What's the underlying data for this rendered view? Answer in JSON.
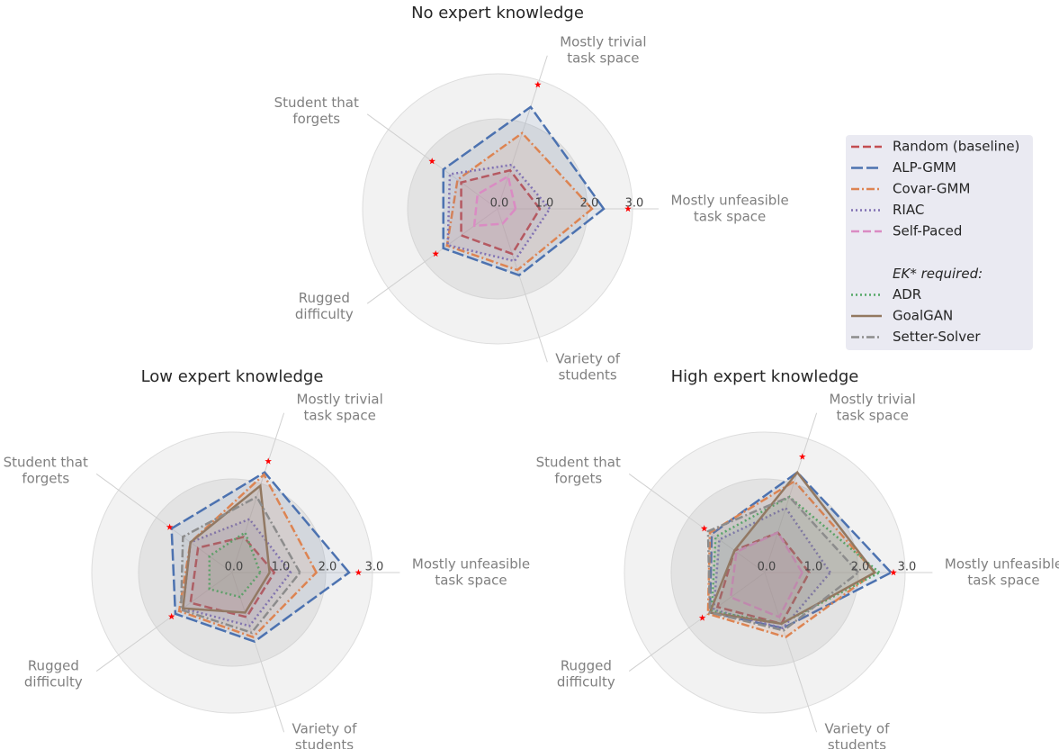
{
  "chart_data": [
    {
      "type": "radar",
      "title": "No expert knowledge",
      "axes": [
        [
          "Mostly unfeasible",
          "task space"
        ],
        [
          "Mostly trivial",
          "task space"
        ],
        [
          "Student that",
          "forgets"
        ],
        [
          "Rugged",
          "difficulty"
        ],
        [
          "Variety of",
          "students"
        ]
      ],
      "rlim": [
        0,
        3
      ],
      "rticks": [
        {
          "value": 0,
          "label": "0.0"
        },
        {
          "value": 1,
          "label": "1.0"
        },
        {
          "value": 2,
          "label": "2.0"
        },
        {
          "value": 3,
          "label": "3.0"
        }
      ],
      "series": [
        {
          "name": "Random (baseline)",
          "color": "#c44e52",
          "dash": "dashed",
          "values": [
            0.94,
            0.9,
            1.0,
            1.0,
            1.05
          ]
        },
        {
          "name": "ALP-GMM",
          "color": "#4c72b0",
          "dash": "longdash",
          "values": [
            2.36,
            2.38,
            1.49,
            1.49,
            1.55
          ]
        },
        {
          "name": "Covar-GMM",
          "color": "#dd8452",
          "dash": "dashdot",
          "values": [
            2.1,
            1.77,
            1.1,
            1.39,
            1.43
          ]
        },
        {
          "name": "RIAC",
          "color": "#8172b3",
          "dash": "dotted",
          "values": [
            1.16,
            1.03,
            1.31,
            1.37,
            1.22
          ]
        },
        {
          "name": "Self-Paced",
          "color": "#da8bc3",
          "dash": "dashed",
          "values": [
            0.4,
            0.76,
            0.55,
            0.64,
            0.35
          ]
        }
      ],
      "markers": {
        "color": "#ff0000",
        "values": [
          2.9,
          2.9,
          1.8,
          1.7,
          null
        ]
      }
    },
    {
      "type": "radar",
      "title": "Low expert knowledge",
      "axes": [
        [
          "Mostly unfeasible",
          "task space"
        ],
        [
          "Mostly trivial",
          "task space"
        ],
        [
          "Student that",
          "forgets"
        ],
        [
          "Rugged",
          "difficulty"
        ],
        [
          "Variety of",
          "students"
        ]
      ],
      "rlim": [
        0,
        3
      ],
      "rticks": [
        {
          "value": 0,
          "label": "0.0"
        },
        {
          "value": 1,
          "label": "1.0"
        },
        {
          "value": 2,
          "label": "2.0"
        },
        {
          "value": 3,
          "label": "3.0"
        }
      ],
      "series": [
        {
          "name": "Random (baseline)",
          "color": "#c44e52",
          "dash": "dashed",
          "values": [
            0.9,
            0.8,
            0.9,
            1.1,
            1.0
          ]
        },
        {
          "name": "ALP-GMM",
          "color": "#4c72b0",
          "dash": "longdash",
          "values": [
            2.5,
            2.25,
            1.6,
            1.5,
            1.55
          ]
        },
        {
          "name": "Covar-GMM",
          "color": "#dd8452",
          "dash": "dashdot",
          "values": [
            1.8,
            2.2,
            1.1,
            1.4,
            1.45
          ]
        },
        {
          "name": "RIAC",
          "color": "#8172b3",
          "dash": "dotted",
          "values": [
            1.25,
            1.2,
            1.1,
            1.3,
            1.2
          ]
        },
        {
          "name": "ADR",
          "color": "#55a868",
          "dash": "dotted",
          "values": [
            0.6,
            0.9,
            0.6,
            0.6,
            0.55
          ]
        },
        {
          "name": "GoalGAN",
          "color": "#937860",
          "dash": "solid",
          "values": [
            0.8,
            1.95,
            1.1,
            1.3,
            0.9
          ]
        },
        {
          "name": "Setter-Solver",
          "color": "#8c8c8c",
          "dash": "dashdot",
          "values": [
            1.45,
            1.7,
            1.3,
            1.35,
            1.35
          ]
        }
      ],
      "markers": {
        "color": "#ff0000",
        "values": [
          2.7,
          2.5,
          1.65,
          1.6,
          null
        ]
      }
    },
    {
      "type": "radar",
      "title": "High expert knowledge",
      "axes": [
        [
          "Mostly unfeasible",
          "task space"
        ],
        [
          "Mostly trivial",
          "task space"
        ],
        [
          "Student that",
          "forgets"
        ],
        [
          "Rugged",
          "difficulty"
        ],
        [
          "Variety of",
          "students"
        ]
      ],
      "rlim": [
        0,
        3
      ],
      "rticks": [
        {
          "value": 0,
          "label": "0.0"
        },
        {
          "value": 1,
          "label": "1.0"
        },
        {
          "value": 2,
          "label": "2.0"
        },
        {
          "value": 3,
          "label": "3.0"
        }
      ],
      "series": [
        {
          "name": "Random (baseline)",
          "color": "#c44e52",
          "dash": "dashed",
          "values": [
            0.95,
            0.9,
            0.8,
            1.25,
            1.15
          ]
        },
        {
          "name": "ALP-GMM",
          "color": "#4c72b0",
          "dash": "longdash",
          "values": [
            2.7,
            2.25,
            1.4,
            1.45,
            1.25
          ]
        },
        {
          "name": "Covar-GMM",
          "color": "#dd8452",
          "dash": "dashdot",
          "values": [
            2.35,
            2.05,
            1.45,
            1.5,
            1.45
          ]
        },
        {
          "name": "RIAC",
          "color": "#8172b3",
          "dash": "dotted",
          "values": [
            1.4,
            1.45,
            1.2,
            1.35,
            1.25
          ]
        },
        {
          "name": "Self-Paced",
          "color": "#da8bc3",
          "dash": "dashed",
          "values": [
            0.8,
            0.9,
            0.75,
            0.9,
            1.0
          ]
        },
        {
          "name": "ADR",
          "color": "#55a868",
          "dash": "dotted",
          "values": [
            2.45,
            1.7,
            1.3,
            1.4,
            1.15
          ]
        },
        {
          "name": "GoalGAN",
          "color": "#937860",
          "dash": "solid",
          "values": [
            2.35,
            2.25,
            0.8,
            1.45,
            1.15
          ]
        },
        {
          "name": "Setter-Solver",
          "color": "#8c8c8c",
          "dash": "dashdot",
          "values": [
            2.0,
            1.7,
            1.5,
            1.45,
            1.3
          ]
        }
      ],
      "markers": {
        "color": "#ff0000",
        "values": [
          2.75,
          2.6,
          1.6,
          1.65,
          null
        ]
      }
    }
  ],
  "legend": {
    "position": "right",
    "groups": [
      {
        "items": [
          {
            "name": "Random (baseline)",
            "color": "#c44e52",
            "dash": "dashed"
          },
          {
            "name": "ALP-GMM",
            "color": "#4c72b0",
            "dash": "longdash"
          },
          {
            "name": "Covar-GMM",
            "color": "#dd8452",
            "dash": "dashdot"
          },
          {
            "name": "RIAC",
            "color": "#8172b3",
            "dash": "dotted"
          },
          {
            "name": "Self-Paced",
            "color": "#da8bc3",
            "dash": "dashed"
          }
        ]
      },
      {
        "heading": "EK* required:",
        "items": [
          {
            "name": "ADR",
            "color": "#55a868",
            "dash": "dotted"
          },
          {
            "name": "GoalGAN",
            "color": "#937860",
            "dash": "solid"
          },
          {
            "name": "Setter-Solver",
            "color": "#8c8c8c",
            "dash": "dashdot"
          }
        ]
      }
    ]
  }
}
